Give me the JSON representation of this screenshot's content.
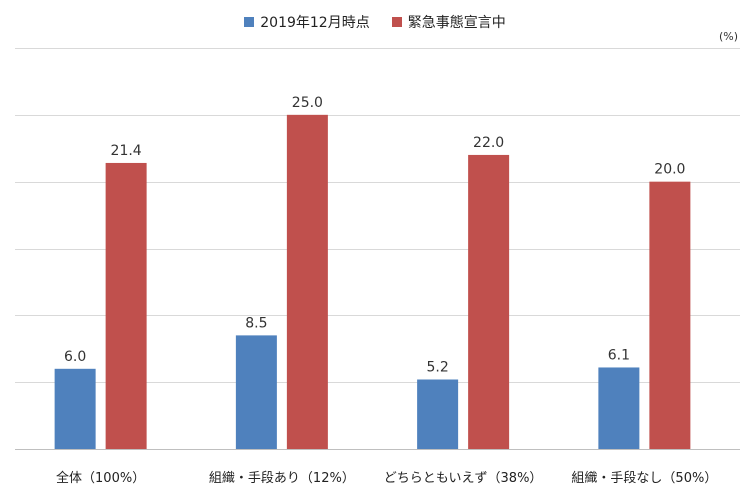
{
  "chart_data": {
    "type": "bar",
    "unit_label": "(%)",
    "categories": [
      "全体（100%）",
      "組織・手段あり（12%）",
      "どちらともいえず（38%）",
      "組織・手段なし（50%）"
    ],
    "series": [
      {
        "name": "2019年12月時点",
        "color": "#4f81bd",
        "values": [
          6.0,
          8.5,
          5.2,
          6.1
        ],
        "labels": [
          "6.0",
          "8.5",
          "5.2",
          "6.1"
        ]
      },
      {
        "name": "緊急事態宣言中",
        "color": "#c0504d",
        "values": [
          21.4,
          25.0,
          22.0,
          20.0
        ],
        "labels": [
          "21.4",
          "25.0",
          "22.0",
          "20.0"
        ]
      }
    ],
    "ylim": [
      0,
      30
    ],
    "yticks": [
      0,
      5,
      10,
      15,
      20,
      25,
      30
    ],
    "grid": true,
    "legend": "top-center"
  }
}
